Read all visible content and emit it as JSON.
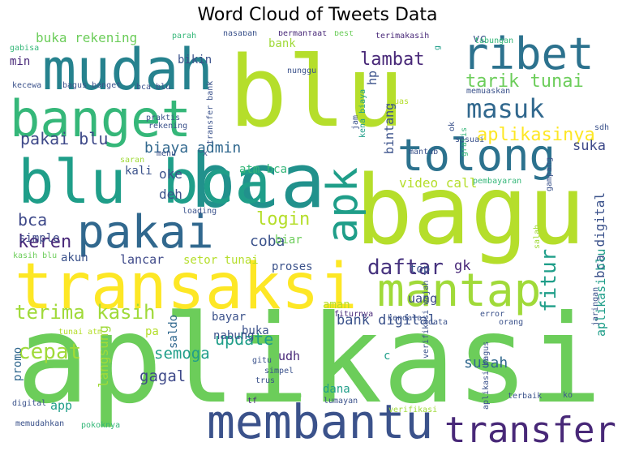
{
  "chart_data": {
    "type": "wordcloud",
    "title": "Word Cloud of Tweets Data",
    "background": "#ffffff",
    "colormap": "viridis",
    "words": [
      {
        "text": "aplikasi",
        "weight": 1.0,
        "color": "#6ccd5a"
      },
      {
        "text": "bagu",
        "weight": 0.95,
        "color": "#b5de2b"
      },
      {
        "text": "blu",
        "weight": 0.92,
        "color": "#b5de2b"
      },
      {
        "text": "transaksi",
        "weight": 0.72,
        "color": "#fde725"
      },
      {
        "text": "bca",
        "weight": 0.7,
        "color": "#21918c"
      },
      {
        "text": "blu bca",
        "weight": 0.68,
        "color": "#1f9e89"
      },
      {
        "text": "mudah",
        "weight": 0.66,
        "color": "#26828e"
      },
      {
        "text": "banget",
        "weight": 0.62,
        "color": "#35b779"
      },
      {
        "text": "membantu",
        "weight": 0.58,
        "color": "#3b528b"
      },
      {
        "text": "mantap",
        "weight": 0.55,
        "color": "#a0da39"
      },
      {
        "text": "pakai",
        "weight": 0.55,
        "color": "#31688e"
      },
      {
        "text": "tolong",
        "weight": 0.54,
        "color": "#2c728e"
      },
      {
        "text": "apk",
        "weight": 0.52,
        "color": "#1f9e89"
      },
      {
        "text": "ribet",
        "weight": 0.5,
        "color": "#2c728e"
      },
      {
        "text": "transfer",
        "weight": 0.45,
        "color": "#482878"
      },
      {
        "text": "masuk",
        "weight": 0.35,
        "color": "#31688e"
      },
      {
        "text": "terima kasih",
        "weight": 0.28,
        "color": "#a0da39"
      },
      {
        "text": "daftar",
        "weight": 0.28,
        "color": "#46327e"
      },
      {
        "text": "fitur",
        "weight": 0.28,
        "color": "#1f9e89"
      },
      {
        "text": "cepat",
        "weight": 0.25,
        "color": "#a0da39"
      },
      {
        "text": "tarik tunai",
        "weight": 0.22,
        "color": "#6ccd5a"
      },
      {
        "text": "aplikasinya",
        "weight": 0.22,
        "color": "#fde725"
      },
      {
        "text": "lambat",
        "weight": 0.22,
        "color": "#482878"
      },
      {
        "text": "login",
        "weight": 0.22,
        "color": "#b5de2b"
      },
      {
        "text": "keren",
        "weight": 0.2,
        "color": "#482878"
      },
      {
        "text": "update",
        "weight": 0.2,
        "color": "#1f9e89"
      },
      {
        "text": "semoga",
        "weight": 0.18,
        "color": "#1f9e89"
      },
      {
        "text": "gagal",
        "weight": 0.18,
        "color": "#3e4989"
      },
      {
        "text": "bca",
        "weight": 0.18,
        "color": "#3e4989"
      },
      {
        "text": "pakai blu",
        "weight": 0.18,
        "color": "#3e4989"
      },
      {
        "text": "biaya admin",
        "weight": 0.17,
        "color": "#31688e"
      },
      {
        "text": "bank digital",
        "weight": 0.16,
        "color": "#3b528b"
      },
      {
        "text": "susah",
        "weight": 0.16,
        "color": "#31688e"
      },
      {
        "text": "coba",
        "weight": 0.16,
        "color": "#3b528b"
      },
      {
        "text": "bca digital",
        "weight": 0.15,
        "color": "#3b528b"
      },
      {
        "text": "buka rekening",
        "weight": 0.14,
        "color": "#6ccd5a"
      },
      {
        "text": "aplikasi blu",
        "weight": 0.13,
        "color": "#1f9e89"
      },
      {
        "text": "video call",
        "weight": 0.13,
        "color": "#b5de2b"
      },
      {
        "text": "setor tunai",
        "weight": 0.12,
        "color": "#b5de2b"
      },
      {
        "text": "langsung",
        "weight": 0.12,
        "color": "#a0da39"
      },
      {
        "text": "gk",
        "weight": 0.13,
        "color": "#482878"
      },
      {
        "text": "suka",
        "weight": 0.13,
        "color": "#3e4989"
      },
      {
        "text": "bintang",
        "weight": 0.12,
        "color": "#3b528b"
      },
      {
        "text": "deh",
        "weight": 0.12,
        "color": "#3b528b"
      },
      {
        "text": "oke",
        "weight": 0.12,
        "color": "#3b528b"
      },
      {
        "text": "lancar",
        "weight": 0.11,
        "color": "#3e4989"
      },
      {
        "text": "uang",
        "weight": 0.11,
        "color": "#3e4989"
      },
      {
        "text": "bank",
        "weight": 0.11,
        "color": "#a0da39"
      },
      {
        "text": "bikin",
        "weight": 0.1,
        "color": "#3b528b"
      },
      {
        "text": "hp",
        "weight": 0.11,
        "color": "#3b528b"
      },
      {
        "text": "kali",
        "weight": 0.1,
        "color": "#3b528b"
      },
      {
        "text": "atm bca",
        "weight": 0.1,
        "color": "#35b779"
      },
      {
        "text": "simple",
        "weight": 0.1,
        "color": "#3e4989"
      },
      {
        "text": "akun",
        "weight": 0.1,
        "color": "#3b528b"
      },
      {
        "text": "biar",
        "weight": 0.1,
        "color": "#6ccd5a"
      },
      {
        "text": "proses",
        "weight": 0.1,
        "color": "#3b528b"
      },
      {
        "text": "top",
        "weight": 0.1,
        "color": "#3b528b"
      },
      {
        "text": "bayar",
        "weight": 0.1,
        "color": "#3b528b"
      },
      {
        "text": "buka",
        "weight": 0.1,
        "color": "#3b528b"
      },
      {
        "text": "aman",
        "weight": 0.1,
        "color": "#b5de2b"
      },
      {
        "text": "nabung",
        "weight": 0.1,
        "color": "#3b528b"
      },
      {
        "text": "saldo",
        "weight": 0.1,
        "color": "#31688e"
      },
      {
        "text": "udh",
        "weight": 0.1,
        "color": "#482878"
      },
      {
        "text": "dana",
        "weight": 0.1,
        "color": "#1f9e89"
      },
      {
        "text": "app",
        "weight": 0.1,
        "color": "#1f9e89"
      },
      {
        "text": "pa",
        "weight": 0.1,
        "color": "#b5de2b"
      },
      {
        "text": "promo",
        "weight": 0.09,
        "color": "#31688e"
      },
      {
        "text": "vc",
        "weight": 0.09,
        "color": "#3b528b"
      },
      {
        "text": "min",
        "weight": 0.09,
        "color": "#482878"
      },
      {
        "text": "c",
        "weight": 0.09,
        "color": "#1f9e89"
      },
      {
        "text": "nasabah",
        "weight": 0.06,
        "color": "#3b528b"
      },
      {
        "text": "bermanfaat",
        "weight": 0.06,
        "color": "#482878"
      },
      {
        "text": "best",
        "weight": 0.05,
        "color": "#6ccd5a"
      },
      {
        "text": "terimakasih",
        "weight": 0.06,
        "color": "#482878"
      },
      {
        "text": "tabungan",
        "weight": 0.06,
        "color": "#35b779"
      },
      {
        "text": "parah",
        "weight": 0.05,
        "color": "#35b779"
      },
      {
        "text": "gabisa",
        "weight": 0.05,
        "color": "#35b779"
      },
      {
        "text": "kecewa",
        "weight": 0.05,
        "color": "#3b528b"
      },
      {
        "text": "bagus banget",
        "weight": 0.06,
        "color": "#3b528b"
      },
      {
        "text": "bca blu",
        "weight": 0.05,
        "color": "#3b528b"
      },
      {
        "text": "transfer bank",
        "weight": 0.05,
        "color": "#3b528b"
      },
      {
        "text": "kena biaya",
        "weight": 0.05,
        "color": "#1f9e89"
      },
      {
        "text": "nunggu",
        "weight": 0.05,
        "color": "#3b528b"
      },
      {
        "text": "g",
        "weight": 0.05,
        "color": "#1f9e89"
      },
      {
        "text": "memuaskan",
        "weight": 0.05,
        "color": "#3b528b"
      },
      {
        "text": "puas",
        "weight": 0.05,
        "color": "#b5de2b"
      },
      {
        "text": "jam",
        "weight": 0.05,
        "color": "#3b528b"
      },
      {
        "text": "ok",
        "weight": 0.05,
        "color": "#3b528b"
      },
      {
        "text": "gratis",
        "weight": 0.05,
        "color": "#35b779"
      },
      {
        "text": "praktis",
        "weight": 0.06,
        "color": "#3b528b"
      },
      {
        "text": "rekening",
        "weight": 0.06,
        "color": "#3b528b"
      },
      {
        "text": "saran",
        "weight": 0.05,
        "color": "#a0da39"
      },
      {
        "text": "menu",
        "weight": 0.05,
        "color": "#3b528b"
      },
      {
        "text": "x",
        "weight": 0.05,
        "color": "#3b528b"
      },
      {
        "text": "mantab",
        "weight": 0.05,
        "color": "#3b528b"
      },
      {
        "text": "sesuai",
        "weight": 0.05,
        "color": "#3b528b"
      },
      {
        "text": "sdh",
        "weight": 0.05,
        "color": "#3b528b"
      },
      {
        "text": "pembayaran",
        "weight": 0.05,
        "color": "#35b779"
      },
      {
        "text": "gampang",
        "weight": 0.05,
        "color": "#3b528b"
      },
      {
        "text": "salah",
        "weight": 0.05,
        "color": "#a0da39"
      },
      {
        "text": "loading",
        "weight": 0.05,
        "color": "#3b528b"
      },
      {
        "text": "kasih blu",
        "weight": 0.05,
        "color": "#6ccd5a"
      },
      {
        "text": "fiturnya",
        "weight": 0.06,
        "color": "#482878"
      },
      {
        "text": "kendala",
        "weight": 0.05,
        "color": "#3b528b"
      },
      {
        "text": "data",
        "weight": 0.05,
        "color": "#3b528b"
      },
      {
        "text": "error",
        "weight": 0.06,
        "color": "#3b528b"
      },
      {
        "text": "orang",
        "weight": 0.05,
        "color": "#3b528b"
      },
      {
        "text": "jaringan",
        "weight": 0.05,
        "color": "#3b528b"
      },
      {
        "text": "gitu",
        "weight": 0.05,
        "color": "#3b528b"
      },
      {
        "text": "simpel",
        "weight": 0.05,
        "color": "#3b528b"
      },
      {
        "text": "tunai atm",
        "weight": 0.05,
        "color": "#b5de2b"
      },
      {
        "text": "trus",
        "weight": 0.05,
        "color": "#3b528b"
      },
      {
        "text": "verifikasi wajah",
        "weight": 0.05,
        "color": "#3b528b"
      },
      {
        "text": "ko",
        "weight": 0.05,
        "color": "#3b528b"
      },
      {
        "text": "digital",
        "weight": 0.05,
        "color": "#3b528b"
      },
      {
        "text": "tf",
        "weight": 0.05,
        "color": "#482878"
      },
      {
        "text": "nyaman",
        "weight": 0.05,
        "color": "#6ccd5a"
      },
      {
        "text": "terbaik",
        "weight": 0.05,
        "color": "#3b528b"
      },
      {
        "text": "lumayan",
        "weight": 0.05,
        "color": "#3b528b"
      },
      {
        "text": "verifikasi",
        "weight": 0.05,
        "color": "#a0da39"
      },
      {
        "text": "aplikasi bagus",
        "weight": 0.05,
        "color": "#3b528b"
      },
      {
        "text": "memudahkan",
        "weight": 0.05,
        "color": "#3b528b"
      },
      {
        "text": "pokoknya",
        "weight": 0.05,
        "color": "#35b779"
      },
      {
        "text": "mohon",
        "weight": 0.05,
        "color": "#3b528b"
      },
      {
        "text": "admin",
        "weight": 0.05,
        "color": "#3b528b"
      }
    ]
  }
}
